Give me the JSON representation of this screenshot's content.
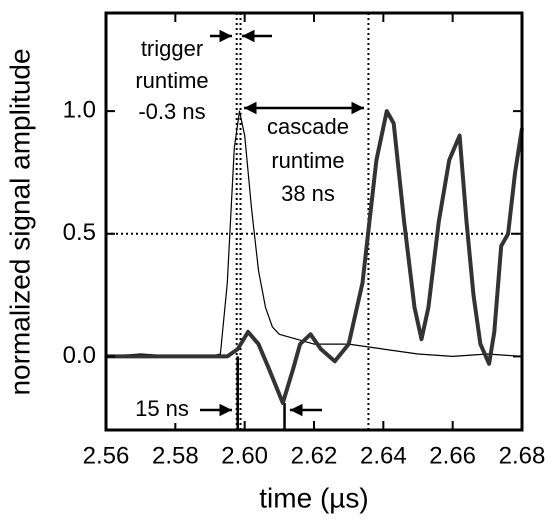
{
  "chart_data": {
    "type": "line",
    "xlabel": "time (µs)",
    "ylabel": "normalized signal amplitude",
    "xlim": [
      2.56,
      2.68
    ],
    "ylim": [
      -0.3,
      1.4
    ],
    "xticks": [
      2.56,
      2.58,
      {
        "value": 2.6,
        "label": "2.60"
      },
      2.62,
      2.64,
      2.66,
      2.68
    ],
    "yticks": [
      {
        "value": 0,
        "label": "0.0"
      },
      0.5,
      {
        "value": 1,
        "label": "1.0"
      }
    ],
    "dotted_vlines": [
      2.5977,
      2.5988,
      2.6357
    ],
    "dotted_hlines": [
      0.5
    ],
    "solid_vlines": [
      2.598,
      2.6115
    ],
    "annotations": [
      "trigger",
      "runtime",
      "-0.3 ns",
      "cascade",
      "runtime",
      "38 ns",
      "15 ns"
    ],
    "series": [
      {
        "color": "#000000",
        "line_width": 1.2,
        "x": [
          2.56,
          2.57,
          2.58,
          2.59,
          2.593,
          2.595,
          2.597,
          2.5985,
          2.6,
          2.602,
          2.604,
          2.606,
          2.608,
          2.61,
          2.615,
          2.62,
          2.63,
          2.64,
          2.65,
          2.66,
          2.67,
          2.68
        ],
        "values": [
          0,
          0.01,
          0,
          0,
          0.01,
          0.3,
          0.85,
          1.0,
          0.9,
          0.6,
          0.35,
          0.2,
          0.12,
          0.09,
          0.07,
          0.05,
          0.05,
          0.03,
          0.01,
          0.0,
          0.01,
          0.0
        ]
      },
      {
        "color": "#333333",
        "line_width": 4,
        "x": [
          2.56,
          2.58,
          2.595,
          2.598,
          2.601,
          2.604,
          2.607,
          2.611,
          2.614,
          2.616,
          2.619,
          2.622,
          2.626,
          2.63,
          2.634,
          2.638,
          2.641,
          2.643,
          2.646,
          2.649,
          2.651,
          2.653,
          2.656,
          2.659,
          2.662,
          2.664,
          2.666,
          2.668,
          2.6705,
          2.672,
          2.674,
          2.676,
          2.678,
          2.68
        ],
        "values": [
          0,
          0,
          0,
          0.03,
          0.1,
          0.05,
          -0.05,
          -0.19,
          -0.05,
          0.05,
          0.09,
          0.03,
          -0.02,
          0.05,
          0.3,
          0.8,
          1.0,
          0.95,
          0.55,
          0.2,
          0.07,
          0.2,
          0.55,
          0.8,
          0.9,
          0.55,
          0.25,
          0.05,
          -0.03,
          0.1,
          0.45,
          0.5,
          0.75,
          0.93
        ]
      }
    ]
  }
}
